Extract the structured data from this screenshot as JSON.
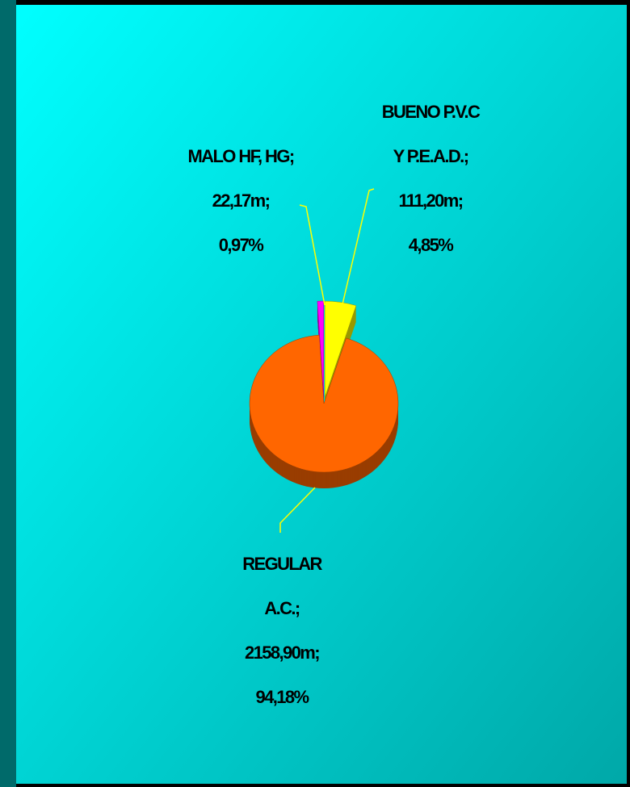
{
  "chart_data": {
    "type": "pie",
    "categories": [
      "MALO HF, HG",
      "BUENO P.V.C Y P.E.A.D.",
      "REGULAR A.C."
    ],
    "values": [
      0.97,
      4.85,
      94.18
    ],
    "value_labels": [
      [
        "MALO HF, HG;",
        "22,17m;",
        "0,97%"
      ],
      [
        "BUENO P.V.C",
        "Y P.E.A.D.;",
        "111,20m;",
        "4,85%"
      ],
      [
        "REGULAR",
        "A.C.;",
        "2158,90m;",
        "94,18%"
      ]
    ],
    "colors": [
      "#ff00ff",
      "#ffff00",
      "#ff6600"
    ],
    "legend": false
  }
}
